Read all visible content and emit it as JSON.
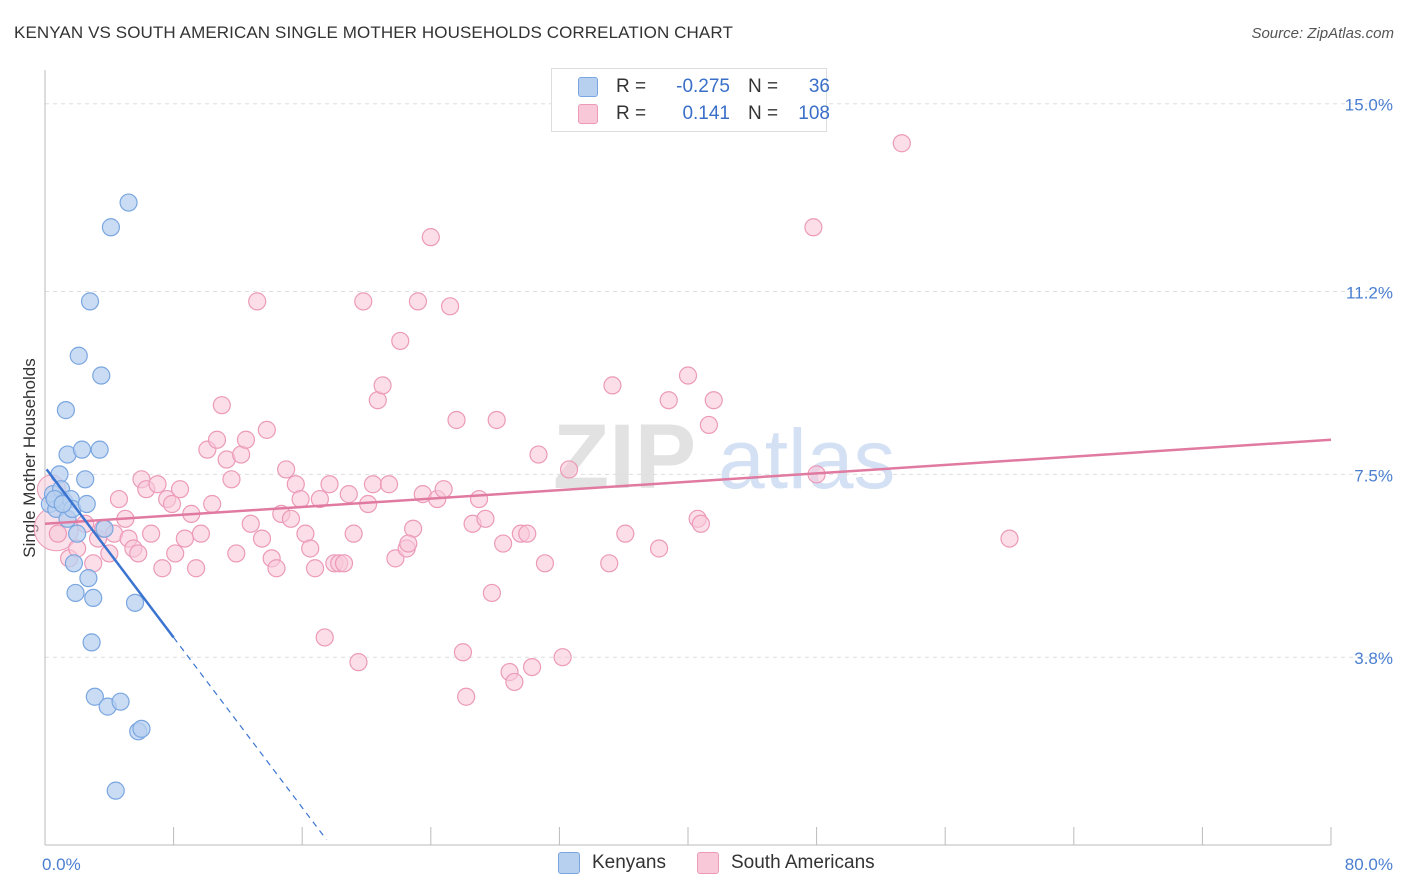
{
  "title": "KENYAN VS SOUTH AMERICAN SINGLE MOTHER HOUSEHOLDS CORRELATION CHART",
  "source": "Source: ZipAtlas.com",
  "watermark": {
    "zip": "ZIP",
    "atlas": "atlas"
  },
  "colors": {
    "kenyan_fill": "#b8d0f0",
    "kenyan_stroke": "#7aa6e0",
    "kenyan_line": "#3a74d0",
    "south_fill": "#f8c8d8",
    "south_stroke": "#ec9ab8",
    "south_line": "#e07aa0",
    "grid": "#dddddd",
    "tick_text": "#4a7fd0"
  },
  "legend": {
    "rows": [
      {
        "r_label": "R =",
        "r_value": "-0.275",
        "n_label": "N =",
        "n_value": "36"
      },
      {
        "r_label": "R =",
        "r_value": "0.141",
        "n_label": "N =",
        "n_value": "108"
      }
    ],
    "series": [
      "Kenyans",
      "South Americans"
    ]
  },
  "chart_data": {
    "type": "scatter",
    "title": "KENYAN VS SOUTH AMERICAN SINGLE MOTHER HOUSEHOLDS CORRELATION CHART",
    "xlabel": "",
    "ylabel": "Single Mother Households",
    "xlim": [
      0,
      80
    ],
    "ylim": [
      0,
      15.5
    ],
    "x_tick_labels": [
      "0.0%",
      "80.0%"
    ],
    "y_ticks": [
      {
        "value": 3.8,
        "label": "3.8%"
      },
      {
        "value": 7.5,
        "label": "7.5%"
      },
      {
        "value": 11.2,
        "label": "11.2%"
      },
      {
        "value": 15.0,
        "label": "15.0%"
      }
    ],
    "grid": true,
    "series": [
      {
        "name": "Kenyans",
        "r": -0.275,
        "n": 36,
        "trend": {
          "x": [
            0.1,
            8.0
          ],
          "y": [
            7.6,
            4.2
          ],
          "dashed_to_x": 17.5
        },
        "points": [
          [
            0.3,
            6.9
          ],
          [
            0.5,
            7.1
          ],
          [
            0.7,
            6.8
          ],
          [
            0.9,
            7.5
          ],
          [
            1.0,
            7.2
          ],
          [
            1.2,
            6.95
          ],
          [
            1.4,
            6.6
          ],
          [
            1.6,
            7.0
          ],
          [
            1.3,
            8.8
          ],
          [
            1.4,
            7.9
          ],
          [
            1.7,
            6.8
          ],
          [
            1.8,
            5.7
          ],
          [
            1.9,
            5.1
          ],
          [
            2.0,
            6.3
          ],
          [
            2.1,
            9.9
          ],
          [
            2.3,
            8.0
          ],
          [
            2.5,
            7.4
          ],
          [
            2.6,
            6.9
          ],
          [
            2.7,
            5.4
          ],
          [
            2.8,
            11.0
          ],
          [
            2.9,
            4.1
          ],
          [
            3.0,
            5.0
          ],
          [
            3.1,
            3.0
          ],
          [
            3.4,
            8.0
          ],
          [
            3.5,
            9.5
          ],
          [
            3.7,
            6.4
          ],
          [
            3.9,
            2.8
          ],
          [
            4.1,
            12.5
          ],
          [
            4.4,
            1.1
          ],
          [
            4.7,
            2.9
          ],
          [
            5.2,
            13.0
          ],
          [
            5.6,
            4.9
          ],
          [
            5.8,
            2.3
          ],
          [
            6.0,
            2.35
          ],
          [
            0.6,
            7.0
          ],
          [
            1.1,
            6.9
          ]
        ]
      },
      {
        "name": "South Americans",
        "r": 0.141,
        "n": 108,
        "trend": {
          "x": [
            0,
            80
          ],
          "y": [
            6.5,
            8.2
          ]
        },
        "points": [
          [
            0.8,
            6.3
          ],
          [
            1.5,
            5.8
          ],
          [
            2.0,
            6.0
          ],
          [
            2.5,
            6.5
          ],
          [
            3.0,
            5.7
          ],
          [
            3.3,
            6.2
          ],
          [
            3.6,
            6.4
          ],
          [
            4.0,
            5.9
          ],
          [
            4.3,
            6.3
          ],
          [
            4.6,
            7.0
          ],
          [
            5.0,
            6.6
          ],
          [
            5.2,
            6.2
          ],
          [
            5.5,
            6.0
          ],
          [
            5.8,
            5.9
          ],
          [
            6.0,
            7.4
          ],
          [
            6.3,
            7.2
          ],
          [
            6.6,
            6.3
          ],
          [
            7.0,
            7.3
          ],
          [
            7.3,
            5.6
          ],
          [
            7.6,
            7.0
          ],
          [
            7.9,
            6.9
          ],
          [
            8.1,
            5.9
          ],
          [
            8.4,
            7.2
          ],
          [
            8.7,
            6.2
          ],
          [
            9.1,
            6.7
          ],
          [
            9.4,
            5.6
          ],
          [
            9.7,
            6.3
          ],
          [
            10.1,
            8.0
          ],
          [
            10.4,
            6.9
          ],
          [
            10.7,
            8.2
          ],
          [
            11.0,
            8.9
          ],
          [
            11.3,
            7.8
          ],
          [
            11.6,
            7.4
          ],
          [
            11.9,
            5.9
          ],
          [
            12.2,
            7.9
          ],
          [
            12.5,
            8.2
          ],
          [
            12.8,
            6.5
          ],
          [
            13.2,
            11.0
          ],
          [
            13.5,
            6.2
          ],
          [
            13.8,
            8.4
          ],
          [
            14.1,
            5.8
          ],
          [
            14.4,
            5.6
          ],
          [
            14.7,
            6.7
          ],
          [
            15.0,
            7.6
          ],
          [
            15.3,
            6.6
          ],
          [
            15.6,
            7.3
          ],
          [
            15.9,
            7.0
          ],
          [
            16.2,
            6.3
          ],
          [
            16.5,
            6.0
          ],
          [
            16.8,
            5.6
          ],
          [
            17.1,
            7.0
          ],
          [
            17.4,
            4.2
          ],
          [
            17.7,
            7.3
          ],
          [
            18.0,
            5.7
          ],
          [
            18.3,
            5.7
          ],
          [
            18.6,
            5.7
          ],
          [
            18.9,
            7.1
          ],
          [
            19.2,
            6.3
          ],
          [
            19.5,
            3.7
          ],
          [
            19.8,
            11.0
          ],
          [
            20.1,
            6.9
          ],
          [
            20.4,
            7.3
          ],
          [
            20.7,
            9.0
          ],
          [
            21.0,
            9.3
          ],
          [
            21.4,
            7.3
          ],
          [
            21.8,
            5.8
          ],
          [
            22.1,
            10.2
          ],
          [
            22.5,
            6.0
          ],
          [
            22.9,
            6.4
          ],
          [
            23.2,
            11.0
          ],
          [
            23.5,
            7.1
          ],
          [
            24.0,
            12.3
          ],
          [
            24.4,
            7.0
          ],
          [
            24.8,
            7.2
          ],
          [
            25.2,
            10.9
          ],
          [
            25.6,
            8.6
          ],
          [
            26.0,
            3.9
          ],
          [
            26.2,
            3.0
          ],
          [
            26.6,
            6.5
          ],
          [
            27.0,
            7.0
          ],
          [
            27.4,
            6.6
          ],
          [
            27.8,
            5.1
          ],
          [
            28.1,
            8.6
          ],
          [
            28.5,
            6.1
          ],
          [
            28.9,
            3.5
          ],
          [
            29.2,
            3.3
          ],
          [
            29.6,
            6.3
          ],
          [
            30.0,
            6.3
          ],
          [
            30.3,
            3.6
          ],
          [
            30.7,
            7.9
          ],
          [
            31.1,
            5.7
          ],
          [
            32.2,
            3.8
          ],
          [
            32.6,
            7.6
          ],
          [
            35.1,
            5.7
          ],
          [
            36.1,
            6.3
          ],
          [
            38.2,
            6.0
          ],
          [
            38.8,
            9.0
          ],
          [
            40.0,
            9.5
          ],
          [
            40.6,
            6.6
          ],
          [
            41.3,
            8.5
          ],
          [
            41.6,
            9.0
          ],
          [
            47.8,
            12.5
          ],
          [
            48.0,
            7.5
          ],
          [
            53.3,
            14.2
          ],
          [
            60.0,
            6.2
          ],
          [
            40.8,
            6.5
          ],
          [
            22.6,
            6.1
          ],
          [
            35.3,
            9.3
          ]
        ]
      }
    ]
  }
}
